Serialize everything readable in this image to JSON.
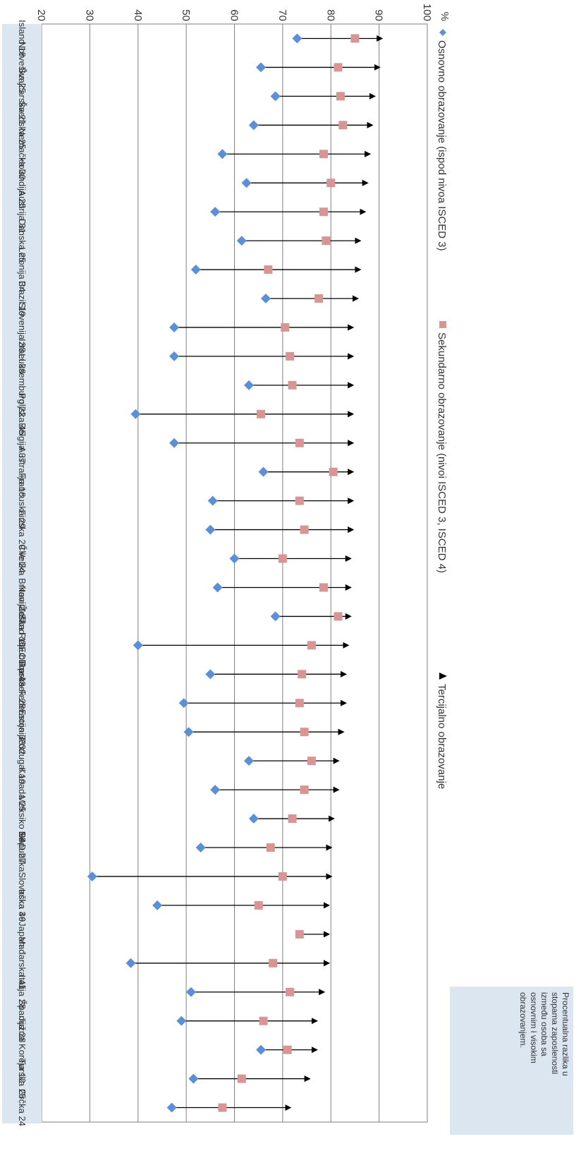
{
  "chart_data": {
    "type": "scatter",
    "orientation": "rotated-90-clockwise",
    "ylabel": "%",
    "ylim": [
      20,
      100
    ],
    "ticks": [
      100,
      90,
      80,
      70,
      60,
      50,
      40,
      30,
      20
    ],
    "grid": true,
    "legend_position": "top",
    "annotation": "Procentualna razlika u stopama zaposlenosti između osoba sa osnovnim i visokim obrazovanjem.",
    "series": [
      {
        "name": "Osnovno obrazovanje (ispod nivoa ISCED 3)",
        "color": "#5b8fd6",
        "marker": "diamond"
      },
      {
        "name": "Sekundarno obrazovanje (nivoi ISCED 3, ISCED 4)",
        "color": "#d99594",
        "marker": "square"
      },
      {
        "name": "Tercijalno obrazovanje",
        "color": "#000000",
        "marker": "triangle"
      }
    ],
    "categories": [
      "Island 18",
      "Norveška 25",
      "Švajcarska 21",
      "Švedska 25",
      "Nemačka 30",
      "Holandija 25",
      "Austrija 31",
      "Danska 25",
      "Letonija 34",
      "Brazil 19",
      "Slovenija 38",
      "Izrael 38",
      "Luksemburg 22",
      "Poljska 45",
      "Belgija 37",
      "Australija 18",
      "Francuska 29",
      "Finska 29",
      "Čile 24",
      "Velika Britanija 27",
      "Novi Zeland 16",
      "Češka Republika 43",
      "OECD prosek 28",
      "Ruska Federacija 33",
      "Estonija 32",
      "Portugal 19",
      "Kanada 25",
      "Meksiko 16",
      "SAD 27",
      "RepublikaSlovačka 49",
      "Irska 36",
      "Japan",
      "Mađarska 41",
      "Italija 28",
      "Španija 28",
      "Južna Koreja 12",
      "Turska 25",
      "Grčka 24"
    ],
    "primary": [
      73,
      65.5,
      68.5,
      64,
      57.5,
      62.5,
      56,
      61.5,
      52,
      66.5,
      47.5,
      47.5,
      63,
      39.5,
      47.5,
      66,
      55.5,
      55,
      60,
      56.5,
      68.5,
      40,
      55,
      49.5,
      50.5,
      63,
      56,
      64,
      53,
      30.5,
      44,
      null,
      38.5,
      51,
      49,
      65.5,
      51.5,
      47
    ],
    "secondary": [
      85,
      81.5,
      82,
      82.5,
      78.5,
      80,
      78.5,
      79,
      67,
      77.5,
      70.5,
      71.5,
      72,
      65.5,
      73.5,
      80.5,
      73.5,
      74.5,
      70,
      78.5,
      81.5,
      76,
      74,
      73.5,
      74.5,
      76,
      74.5,
      72,
      67.5,
      70,
      65,
      73.5,
      68,
      71.5,
      66,
      71,
      61.5,
      57.5
    ],
    "tertiary": [
      91,
      90.5,
      89.5,
      89,
      88.5,
      88,
      87.5,
      86.5,
      86.5,
      86,
      85,
      85,
      85,
      85,
      85,
      85,
      85,
      85,
      84.5,
      84.5,
      84.5,
      84,
      83.5,
      83.5,
      83,
      82,
      82,
      81,
      80.5,
      80.5,
      80,
      80,
      80,
      79,
      77.5,
      77.5,
      76,
      72
    ]
  }
}
